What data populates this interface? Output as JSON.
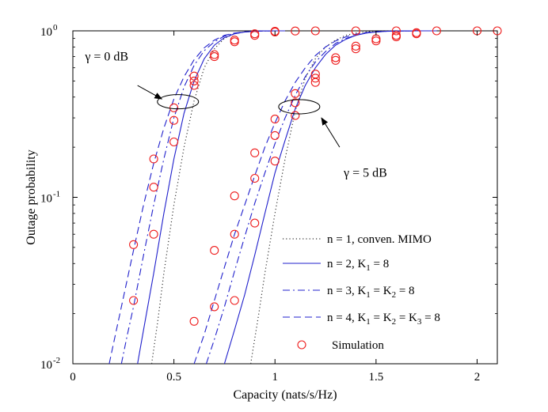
{
  "chart_data": {
    "type": "line",
    "xlabel": "Capacity (nats/s/Hz)",
    "ylabel": "Outage probability",
    "xlim": [
      0,
      2.1
    ],
    "ylim": [
      0.01,
      1
    ],
    "yscale": "log",
    "xticks": [
      0,
      0.5,
      1,
      1.5,
      2
    ],
    "xtick_labels": [
      "0",
      "0.5",
      "1",
      "1.5",
      "2"
    ],
    "yticks": [
      0.01,
      0.1,
      1
    ],
    "ytick_labels": [
      {
        "base": "10",
        "exp": "-2"
      },
      {
        "base": "10",
        "exp": "-1"
      },
      {
        "base": "10",
        "exp": "0"
      }
    ],
    "legend_position": "bottom-right",
    "series": [
      {
        "key": "n1",
        "name": "n = 1, conven. MIMO",
        "name_parts": [
          {
            "t": "n = 1, conven. MIMO"
          }
        ],
        "style": "dotted",
        "color": "#333333",
        "curves": [
          {
            "x": [
              0.39,
              0.42,
              0.45,
              0.5,
              0.55,
              0.6,
              0.65,
              0.7,
              0.75,
              0.8,
              0.85,
              0.9,
              0.95,
              1.0
            ],
            "y": [
              0.01,
              0.018,
              0.035,
              0.09,
              0.2,
              0.38,
              0.6,
              0.78,
              0.9,
              0.96,
              0.985,
              0.995,
              0.999,
              1.0
            ]
          },
          {
            "x": [
              0.88,
              0.92,
              0.95,
              1.0,
              1.05,
              1.1,
              1.15,
              1.2,
              1.25,
              1.3,
              1.35,
              1.4,
              1.45,
              1.5,
              1.55,
              1.6
            ],
            "y": [
              0.01,
              0.02,
              0.035,
              0.08,
              0.17,
              0.33,
              0.52,
              0.68,
              0.8,
              0.88,
              0.94,
              0.97,
              0.985,
              0.995,
              0.999,
              1.0
            ]
          }
        ]
      },
      {
        "key": "n2",
        "name": "n = 2, K1 = 8",
        "name_parts": [
          {
            "t": "n = 2, K"
          },
          {
            "sub": "1"
          },
          {
            "t": " = 8"
          }
        ],
        "style": "solid",
        "color": "#2020cc",
        "curves": [
          {
            "x": [
              0.32,
              0.35,
              0.4,
              0.45,
              0.5,
              0.55,
              0.6,
              0.65,
              0.7,
              0.75,
              0.8,
              0.85,
              0.9,
              0.95,
              1.0,
              1.05
            ],
            "y": [
              0.01,
              0.016,
              0.035,
              0.08,
              0.17,
              0.32,
              0.5,
              0.68,
              0.82,
              0.91,
              0.96,
              0.985,
              0.995,
              0.999,
              1.0,
              1.0
            ]
          },
          {
            "x": [
              0.75,
              0.8,
              0.85,
              0.9,
              0.95,
              1.0,
              1.05,
              1.1,
              1.15,
              1.2,
              1.25,
              1.3,
              1.35,
              1.4,
              1.45,
              1.5,
              1.55,
              1.6,
              1.7,
              1.8
            ],
            "y": [
              0.01,
              0.016,
              0.026,
              0.045,
              0.08,
              0.14,
              0.22,
              0.34,
              0.47,
              0.6,
              0.72,
              0.82,
              0.89,
              0.94,
              0.97,
              0.985,
              0.993,
              0.997,
              1.0,
              1.0
            ]
          }
        ]
      },
      {
        "key": "n3",
        "name": "n = 3, K1 = K2 = 8",
        "name_parts": [
          {
            "t": "n = 3, K"
          },
          {
            "sub": "1"
          },
          {
            "t": " = K"
          },
          {
            "sub": "2"
          },
          {
            "t": " = 8"
          }
        ],
        "style": "dashdot",
        "color": "#2020cc",
        "curves": [
          {
            "x": [
              0.24,
              0.27,
              0.3,
              0.35,
              0.4,
              0.45,
              0.5,
              0.55,
              0.6,
              0.65,
              0.7,
              0.75,
              0.8,
              0.85,
              0.9,
              0.95,
              1.0,
              1.05
            ],
            "y": [
              0.01,
              0.015,
              0.022,
              0.045,
              0.09,
              0.17,
              0.3,
              0.46,
              0.62,
              0.76,
              0.86,
              0.93,
              0.965,
              0.985,
              0.995,
              0.999,
              1.0,
              1.0
            ]
          },
          {
            "x": [
              0.66,
              0.7,
              0.75,
              0.8,
              0.85,
              0.9,
              0.95,
              1.0,
              1.05,
              1.1,
              1.15,
              1.2,
              1.25,
              1.3,
              1.35,
              1.4,
              1.45,
              1.5,
              1.55,
              1.6,
              1.7,
              1.8
            ],
            "y": [
              0.01,
              0.014,
              0.022,
              0.036,
              0.058,
              0.092,
              0.14,
              0.21,
              0.3,
              0.41,
              0.53,
              0.65,
              0.75,
              0.84,
              0.9,
              0.94,
              0.97,
              0.985,
              0.993,
              0.997,
              1.0,
              1.0
            ]
          }
        ]
      },
      {
        "key": "n4",
        "name": "n = 4, K1 = K2 = K3 = 8",
        "name_parts": [
          {
            "t": "n = 4, K"
          },
          {
            "sub": "1"
          },
          {
            "t": " = K"
          },
          {
            "sub": "2"
          },
          {
            "t": " = K"
          },
          {
            "sub": "3"
          },
          {
            "t": " = 8"
          }
        ],
        "style": "dashed",
        "color": "#2020cc",
        "curves": [
          {
            "x": [
              0.18,
              0.2,
              0.25,
              0.3,
              0.35,
              0.4,
              0.45,
              0.5,
              0.55,
              0.6,
              0.65,
              0.7,
              0.75,
              0.8,
              0.85,
              0.9,
              0.95,
              1.0,
              1.05
            ],
            "y": [
              0.01,
              0.013,
              0.025,
              0.048,
              0.09,
              0.16,
              0.26,
              0.39,
              0.53,
              0.67,
              0.79,
              0.88,
              0.94,
              0.97,
              0.985,
              0.995,
              0.999,
              1.0,
              1.0
            ]
          },
          {
            "x": [
              0.6,
              0.65,
              0.7,
              0.75,
              0.8,
              0.85,
              0.9,
              0.95,
              1.0,
              1.05,
              1.1,
              1.15,
              1.2,
              1.25,
              1.3,
              1.35,
              1.4,
              1.45,
              1.5,
              1.55,
              1.6,
              1.7,
              1.8
            ],
            "y": [
              0.01,
              0.015,
              0.024,
              0.038,
              0.06,
              0.09,
              0.135,
              0.2,
              0.28,
              0.38,
              0.49,
              0.6,
              0.71,
              0.8,
              0.87,
              0.92,
              0.955,
              0.975,
              0.988,
              0.995,
              0.998,
              1.0,
              1.0
            ]
          }
        ]
      }
    ],
    "simulation": {
      "name": "Simulation",
      "name_parts": [
        {
          "t": "Simulation"
        }
      ],
      "marker": "circle",
      "color": "#ee1c1c",
      "points": [
        {
          "x": 0.3,
          "y": 0.024
        },
        {
          "x": 0.3,
          "y": 0.052
        },
        {
          "x": 0.4,
          "y": 0.06
        },
        {
          "x": 0.4,
          "y": 0.115
        },
        {
          "x": 0.4,
          "y": 0.17
        },
        {
          "x": 0.5,
          "y": 0.215
        },
        {
          "x": 0.5,
          "y": 0.29
        },
        {
          "x": 0.5,
          "y": 0.345
        },
        {
          "x": 0.6,
          "y": 0.47
        },
        {
          "x": 0.6,
          "y": 0.5
        },
        {
          "x": 0.6,
          "y": 0.535
        },
        {
          "x": 0.7,
          "y": 0.7
        },
        {
          "x": 0.7,
          "y": 0.72
        },
        {
          "x": 0.8,
          "y": 0.86
        },
        {
          "x": 0.8,
          "y": 0.88
        },
        {
          "x": 0.9,
          "y": 0.94
        },
        {
          "x": 0.9,
          "y": 0.96
        },
        {
          "x": 1.0,
          "y": 0.985
        },
        {
          "x": 1.0,
          "y": 0.995
        },
        {
          "x": 1.1,
          "y": 0.998
        },
        {
          "x": 1.2,
          "y": 1.0
        },
        {
          "x": 1.4,
          "y": 1.0
        },
        {
          "x": 1.6,
          "y": 1.0
        },
        {
          "x": 1.8,
          "y": 1.0
        },
        {
          "x": 2.0,
          "y": 1.0
        },
        {
          "x": 2.1,
          "y": 1.0
        },
        {
          "x": 0.6,
          "y": 0.018
        },
        {
          "x": 0.7,
          "y": 0.022
        },
        {
          "x": 0.7,
          "y": 0.048
        },
        {
          "x": 0.8,
          "y": 0.024
        },
        {
          "x": 0.8,
          "y": 0.06
        },
        {
          "x": 0.8,
          "y": 0.102
        },
        {
          "x": 0.9,
          "y": 0.07
        },
        {
          "x": 0.9,
          "y": 0.13
        },
        {
          "x": 0.9,
          "y": 0.185
        },
        {
          "x": 1.0,
          "y": 0.165
        },
        {
          "x": 1.0,
          "y": 0.235
        },
        {
          "x": 1.0,
          "y": 0.295
        },
        {
          "x": 1.1,
          "y": 0.31
        },
        {
          "x": 1.1,
          "y": 0.37
        },
        {
          "x": 1.1,
          "y": 0.42
        },
        {
          "x": 1.2,
          "y": 0.49
        },
        {
          "x": 1.2,
          "y": 0.52
        },
        {
          "x": 1.2,
          "y": 0.55
        },
        {
          "x": 1.3,
          "y": 0.665
        },
        {
          "x": 1.3,
          "y": 0.69
        },
        {
          "x": 1.4,
          "y": 0.78
        },
        {
          "x": 1.4,
          "y": 0.81
        },
        {
          "x": 1.5,
          "y": 0.87
        },
        {
          "x": 1.5,
          "y": 0.895
        },
        {
          "x": 1.6,
          "y": 0.92
        },
        {
          "x": 1.6,
          "y": 0.94
        },
        {
          "x": 1.7,
          "y": 0.96
        },
        {
          "x": 1.7,
          "y": 0.975
        }
      ]
    },
    "annotations": [
      {
        "key": "g0",
        "text": "γ = 0 dB",
        "ellipse_center": [
          0.52,
          0.375
        ],
        "label_anchor": [
          0.06,
          0.7
        ],
        "arrow_from": [
          0.32,
          0.47
        ],
        "arrow_to": [
          0.44,
          0.39
        ]
      },
      {
        "key": "g5",
        "text": "γ = 5 dB",
        "ellipse_center": [
          1.12,
          0.35
        ],
        "label_anchor": [
          1.34,
          0.14
        ],
        "arrow_from": [
          1.32,
          0.2
        ],
        "arrow_to": [
          1.23,
          0.3
        ]
      }
    ]
  }
}
